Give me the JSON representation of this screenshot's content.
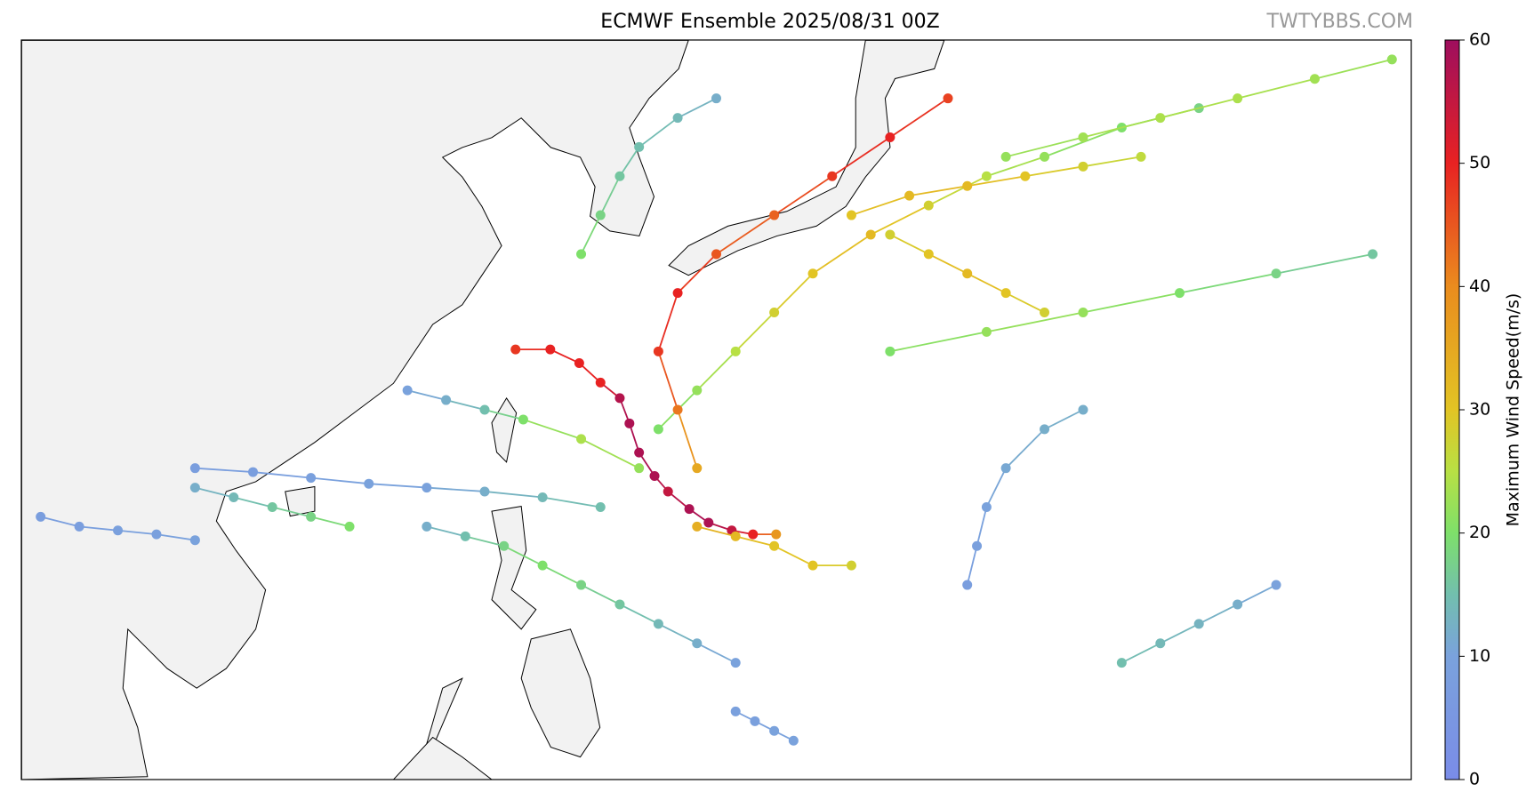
{
  "chart_data": {
    "type": "track-map",
    "title": "ECMWF Ensemble 2025/08/31 00Z",
    "watermark": "TWTYBBS.COM",
    "colorbar_label": "Maximum Wind Speed(m/s)",
    "clim": [
      0,
      60
    ],
    "cticks": [
      0,
      10,
      20,
      30,
      40,
      50,
      60
    ],
    "colormap": [
      {
        "value": 0,
        "color": "#7a8ce8"
      },
      {
        "value": 10,
        "color": "#7aa2dc"
      },
      {
        "value": 15,
        "color": "#72bfae"
      },
      {
        "value": 20,
        "color": "#7ee06a"
      },
      {
        "value": 25,
        "color": "#b8e044"
      },
      {
        "value": 30,
        "color": "#e2c424"
      },
      {
        "value": 40,
        "color": "#ea8c1e"
      },
      {
        "value": 50,
        "color": "#e82222"
      },
      {
        "value": 60,
        "color": "#9e0e5e"
      }
    ],
    "xlim": [
      95,
      167
    ],
    "ylim": [
      6,
      44
    ],
    "tracks": [
      {
        "lon": [
          134.1,
          132.9,
          131.8,
          130.6,
          129.6,
          128.5,
          127.8,
          127.0,
          126.5,
          126.0,
          125.0,
          123.9,
          122.4,
          120.6
        ],
        "lat": [
          18.6,
          18.6,
          18.8,
          19.2,
          19.9,
          20.8,
          21.6,
          22.8,
          24.3,
          25.6,
          26.4,
          27.4,
          28.1,
          28.1
        ],
        "wind": [
          38,
          50,
          55,
          58,
          58,
          55,
          58,
          58,
          58,
          57,
          50,
          50,
          50,
          48
        ]
      },
      {
        "lon": [
          128,
          130,
          132,
          134,
          136,
          139,
          142,
          145,
          148,
          152,
          156
        ],
        "lat": [
          24,
          26,
          28,
          30,
          32,
          34,
          35.5,
          37,
          38,
          39.5,
          40.5
        ],
        "wind": [
          20,
          22,
          25,
          28,
          30,
          32,
          28,
          25,
          22,
          20,
          18
        ]
      },
      {
        "lon": [
          130,
          129,
          128,
          129,
          131,
          134,
          137,
          140,
          143
        ],
        "lat": [
          22,
          25,
          28,
          31,
          33,
          35,
          37,
          39,
          41
        ],
        "wind": [
          35,
          42,
          48,
          50,
          45,
          44,
          48,
          50,
          47
        ]
      },
      {
        "lon": [
          125,
          122,
          119,
          116,
          113,
          110,
          107,
          104
        ],
        "lat": [
          20,
          20.5,
          20.8,
          21,
          21.2,
          21.5,
          21.8,
          22
        ],
        "wind": [
          15,
          14,
          12,
          10,
          10,
          9,
          8,
          8
        ]
      },
      {
        "lon": [
          127,
          124,
          121,
          119,
          117,
          115
        ],
        "lat": [
          22,
          23.5,
          24.5,
          25,
          25.5,
          26
        ],
        "wind": [
          22,
          24,
          20,
          15,
          12,
          10
        ]
      },
      {
        "lon": [
          132,
          130,
          128,
          126,
          124,
          122,
          120,
          118,
          116
        ],
        "lat": [
          12,
          13,
          14,
          15,
          16,
          17,
          18,
          18.5,
          19
        ],
        "wind": [
          10,
          12,
          14,
          16,
          18,
          20,
          18,
          15,
          12
        ]
      },
      {
        "lon": [
          160,
          158,
          156,
          154,
          152
        ],
        "lat": [
          16,
          15,
          14,
          13,
          12
        ],
        "wind": [
          10,
          12,
          13,
          14,
          15
        ]
      },
      {
        "lon": [
          150,
          148,
          146,
          145,
          144.5,
          144
        ],
        "lat": [
          25,
          24,
          22,
          20,
          18,
          16
        ],
        "wind": [
          12,
          12,
          11,
          10,
          9,
          8
        ]
      },
      {
        "lon": [
          138,
          141,
          144,
          147,
          150,
          153
        ],
        "lat": [
          35,
          36,
          36.5,
          37,
          37.5,
          38
        ],
        "wind": [
          30,
          32,
          32,
          30,
          28,
          26
        ]
      },
      {
        "lon": [
          146,
          150,
          154,
          158,
          162,
          166
        ],
        "lat": [
          38,
          39,
          40,
          41,
          42,
          43
        ],
        "wind": [
          22,
          23,
          24,
          24,
          23,
          22
        ]
      },
      {
        "lon": [
          138,
          136,
          134,
          132,
          130
        ],
        "lat": [
          17,
          17,
          18,
          18.5,
          19
        ],
        "wind": [
          28,
          30,
          30,
          32,
          34
        ]
      },
      {
        "lon": [
          124,
          125,
          126,
          127,
          129,
          131
        ],
        "lat": [
          33,
          35,
          37,
          38.5,
          40,
          41
        ],
        "wind": [
          20,
          18,
          16,
          15,
          14,
          12
        ]
      },
      {
        "lon": [
          96,
          98,
          100,
          102,
          104
        ],
        "lat": [
          19.5,
          19,
          18.8,
          18.6,
          18.3
        ],
        "wind": [
          8,
          8,
          9,
          9,
          10
        ]
      },
      {
        "lon": [
          112,
          110,
          108,
          106,
          104
        ],
        "lat": [
          19,
          19.5,
          20,
          20.5,
          21
        ],
        "wind": [
          20,
          18,
          16,
          14,
          12
        ]
      },
      {
        "lon": [
          148,
          146,
          144,
          142,
          140
        ],
        "lat": [
          30,
          31,
          32,
          33,
          34
        ],
        "wind": [
          28,
          30,
          32,
          30,
          28
        ]
      },
      {
        "lon": [
          135,
          134,
          133,
          132
        ],
        "lat": [
          8,
          8.5,
          9,
          9.5
        ],
        "wind": [
          10,
          10,
          9,
          9
        ]
      },
      {
        "lon": [
          140,
          145,
          150,
          155,
          160,
          165
        ],
        "lat": [
          28,
          29,
          30,
          31,
          32,
          33
        ],
        "wind": [
          20,
          22,
          22,
          20,
          18,
          16
        ]
      }
    ]
  }
}
